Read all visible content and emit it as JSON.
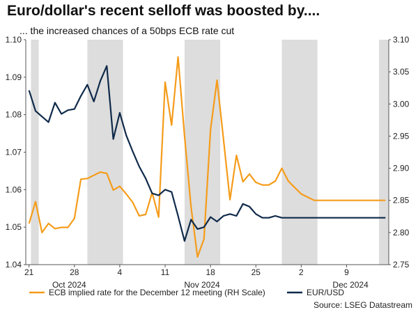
{
  "chart_data": {
    "type": "line",
    "title": "Euro/dollar's recent selloff was boosted by....",
    "subtitle": "... the increased chances of a 50bps ECB rate cut",
    "source": "Source: LSEG Datastream",
    "x_tick_labels": [
      "21",
      "28",
      "4",
      "11",
      "18",
      "25",
      "2",
      "9"
    ],
    "month_labels": [
      "Oct 2024",
      "Nov 2024",
      "Dec 2024"
    ],
    "y_left": {
      "lim": [
        1.04,
        1.1
      ],
      "ticks": [
        "1.04",
        "1.05",
        "1.06",
        "1.07",
        "1.08",
        "1.09",
        "1.10"
      ]
    },
    "y_right": {
      "lim": [
        2.75,
        3.1
      ],
      "ticks": [
        "2.75",
        "2.80",
        "2.85",
        "2.90",
        "2.95",
        "3.00",
        "3.05",
        "3.10"
      ]
    },
    "weekend_shading": [
      [
        0.8,
        2.0
      ],
      [
        9.5,
        15.0
      ],
      [
        24.5,
        30.0
      ],
      [
        39.5,
        45.0
      ],
      [
        54.5,
        56.0
      ]
    ],
    "legend_position": "bottom",
    "grid": false,
    "series": [
      {
        "name": "ECB implied rate for the December 12 meeting (RH Scale)",
        "axis": "right",
        "color": "#f59c1a",
        "x": [
          0,
          1,
          2,
          3,
          4,
          5,
          6,
          7,
          8,
          9,
          10,
          11,
          12,
          13,
          14,
          15,
          16,
          17,
          18,
          19,
          20,
          21,
          22,
          23,
          24,
          25,
          26,
          27,
          28,
          29,
          30,
          31,
          32,
          33,
          34,
          35,
          36,
          37,
          38,
          39,
          40,
          41,
          42,
          43,
          44,
          45,
          46,
          47,
          48,
          49,
          50,
          51,
          52,
          53,
          54,
          55
        ],
        "y": [
          2.814,
          2.848,
          2.8,
          2.814,
          2.806,
          2.808,
          2.808,
          2.822,
          2.883,
          2.884,
          2.889,
          2.894,
          2.892,
          2.866,
          2.872,
          2.86,
          2.847,
          2.826,
          2.828,
          2.862,
          2.824,
          3.034,
          2.967,
          3.073,
          2.95,
          2.84,
          2.762,
          2.79,
          2.96,
          3.037,
          2.945,
          2.851,
          2.92,
          2.879,
          2.891,
          2.878,
          2.874,
          2.874,
          2.88,
          2.9,
          2.88,
          2.87,
          2.86,
          2.855,
          2.85,
          2.85,
          2.85,
          2.85,
          2.85,
          2.85,
          2.85,
          2.85,
          2.85,
          2.85,
          2.85,
          2.85
        ]
      },
      {
        "name": "EUR/USD",
        "axis": "left",
        "color": "#0f2a4a",
        "x": [
          0,
          1,
          2,
          3,
          4,
          5,
          6,
          7,
          8,
          9,
          10,
          11,
          12,
          13,
          14,
          15,
          16,
          17,
          18,
          19,
          20,
          21,
          22,
          23,
          24,
          25,
          26,
          27,
          28,
          29,
          30,
          31,
          32,
          33,
          34,
          35,
          36,
          37,
          38,
          39,
          40,
          41,
          42,
          43,
          44,
          45,
          46,
          47,
          48,
          49,
          50,
          51,
          52,
          53,
          54,
          55
        ],
        "y": [
          1.0865,
          1.081,
          1.0795,
          1.078,
          1.0832,
          1.0802,
          1.0812,
          1.0815,
          1.085,
          1.088,
          1.0835,
          1.089,
          1.093,
          1.0735,
          1.0805,
          1.0745,
          1.0702,
          1.0662,
          1.063,
          1.059,
          1.0585,
          1.06,
          1.0594,
          1.053,
          1.0463,
          1.052,
          1.0495,
          1.05,
          1.0527,
          1.0515,
          1.053,
          1.0535,
          1.053,
          1.0562,
          1.0555,
          1.0535,
          1.0525,
          1.0525,
          1.053,
          1.0525,
          1.0525,
          1.0525,
          1.0525,
          1.0525,
          1.0525,
          1.0525,
          1.0525,
          1.0525,
          1.0525,
          1.0525,
          1.0525,
          1.0525,
          1.0525,
          1.0525,
          1.0525,
          1.0525
        ]
      }
    ]
  }
}
